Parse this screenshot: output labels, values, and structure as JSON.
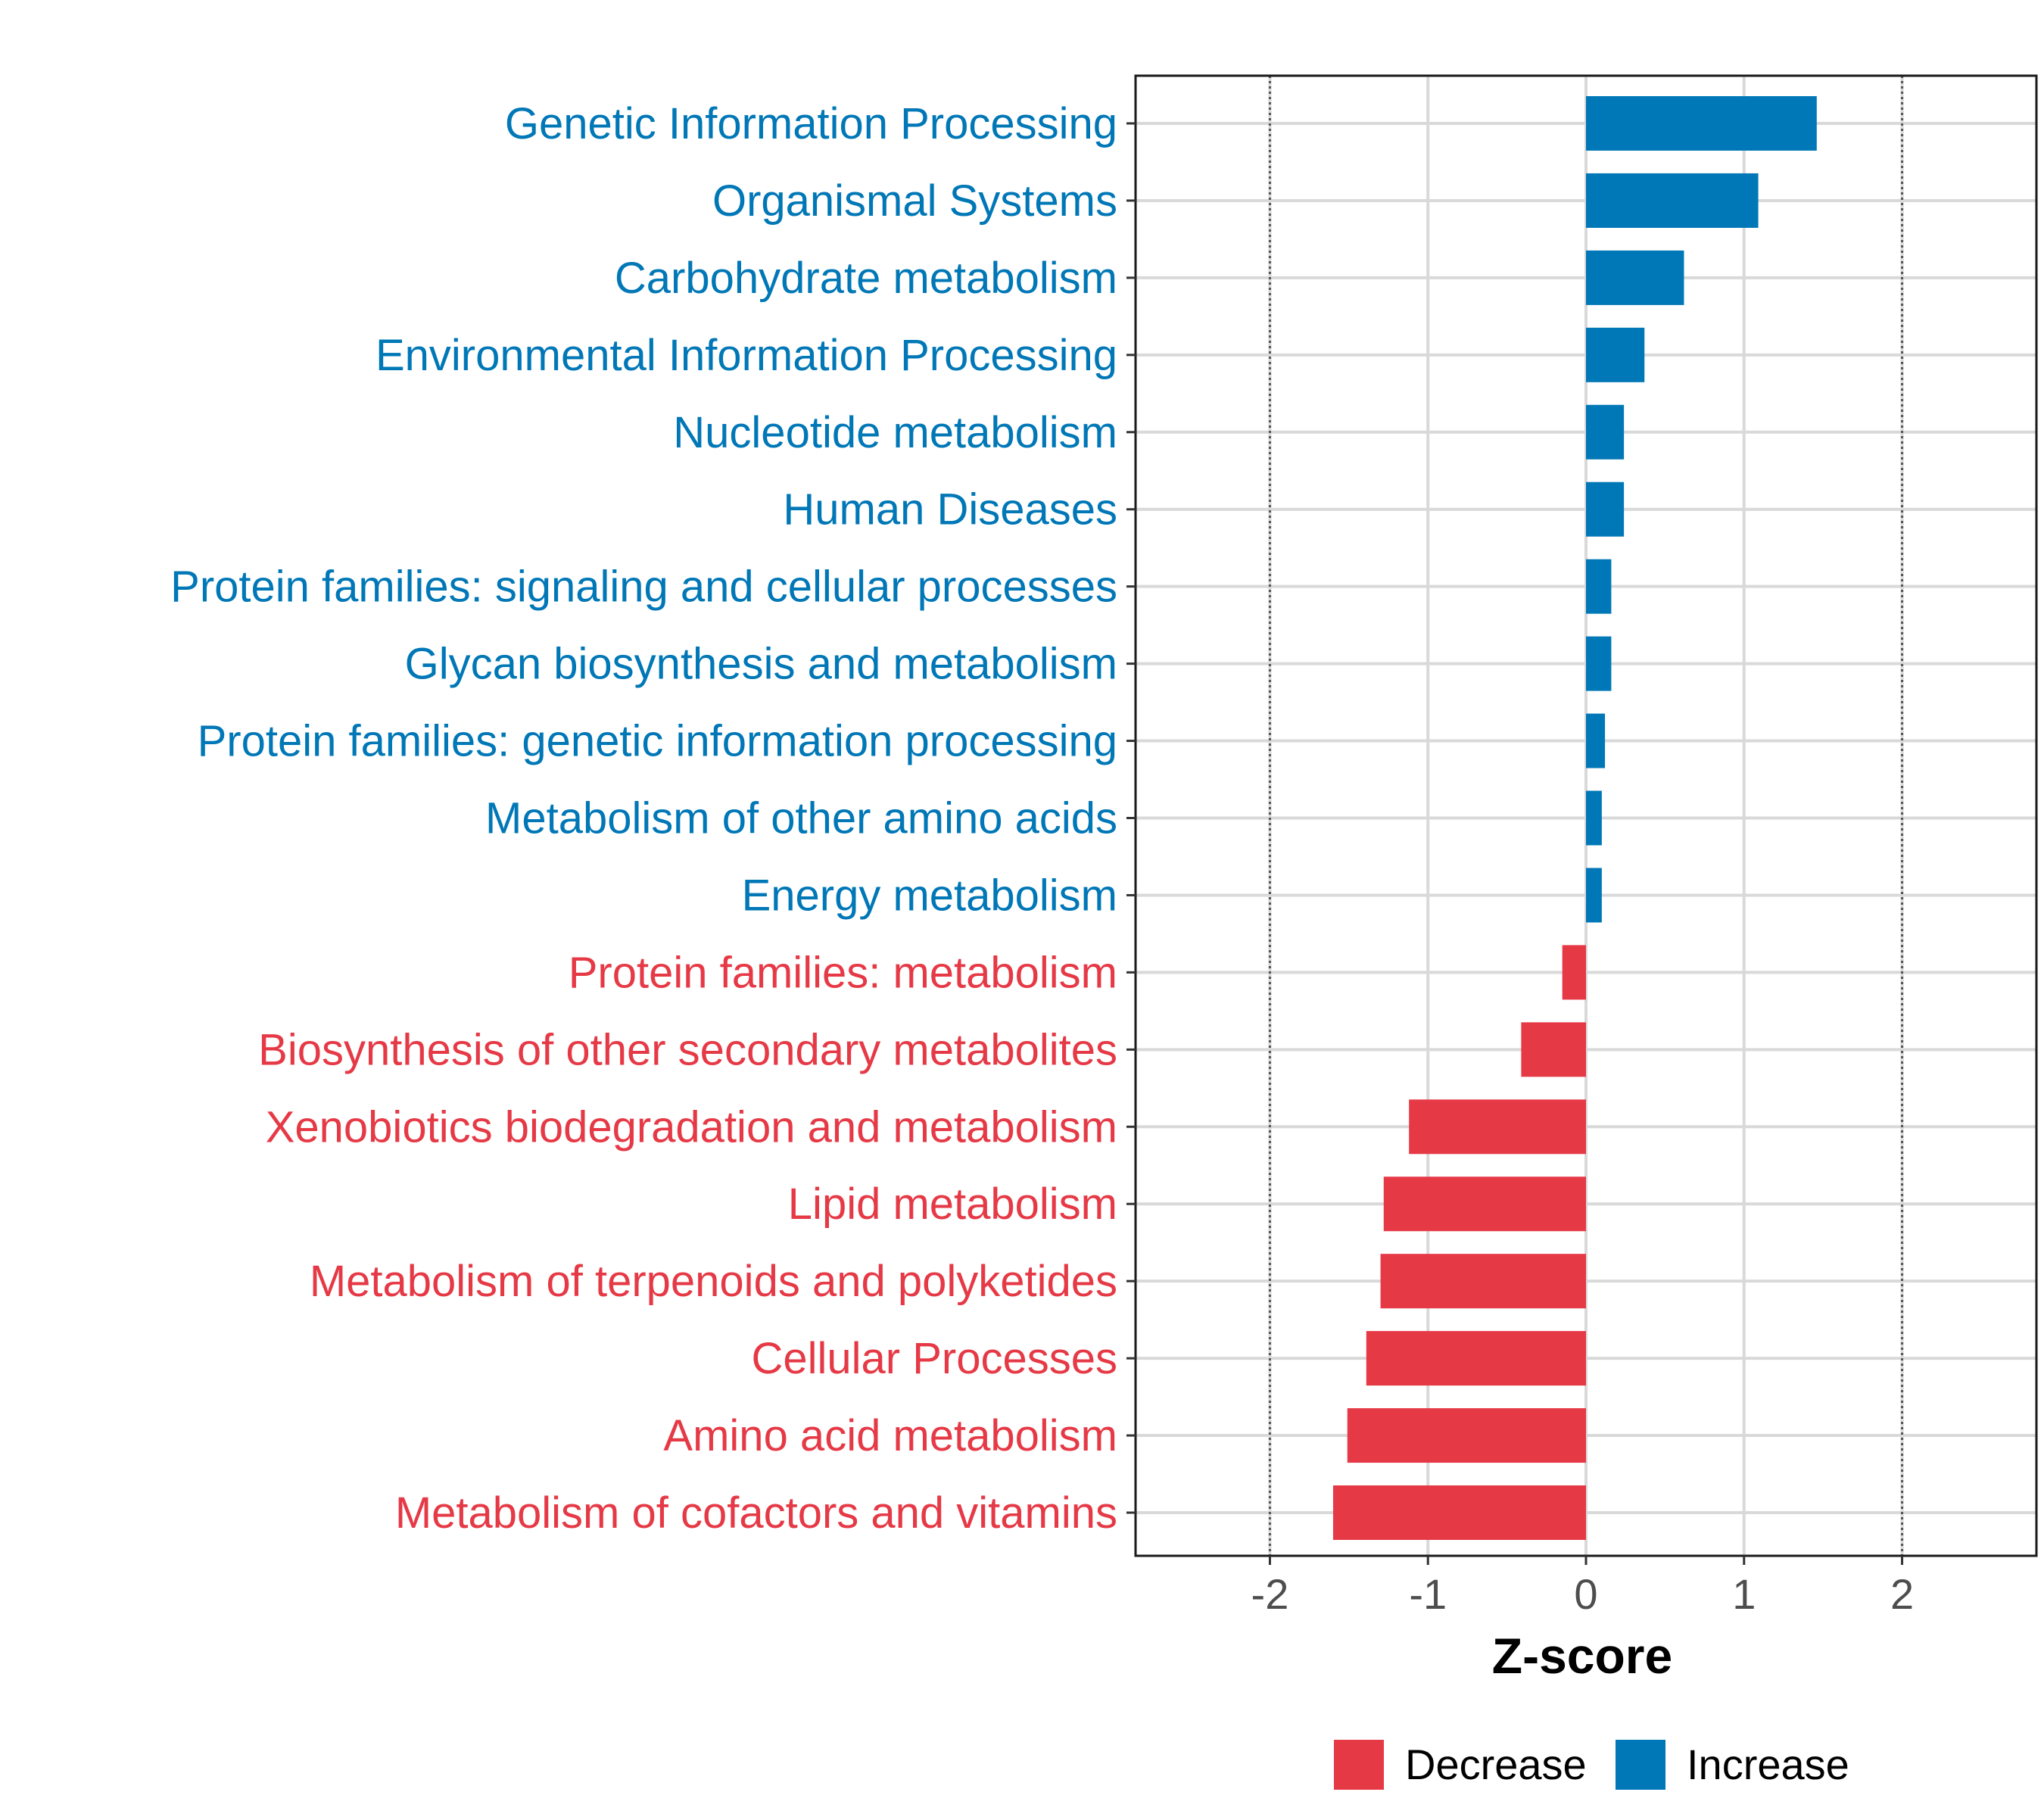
{
  "chart_data": {
    "type": "bar",
    "orientation": "horizontal",
    "xlabel": "Z-score",
    "ylabel": "",
    "xlim": [
      -2.85,
      2.85
    ],
    "x_ticks": [
      -2,
      -1,
      0,
      1,
      2
    ],
    "x_tick_labels": [
      "-2",
      "-1",
      "0",
      "1",
      "2"
    ],
    "reference_lines": [
      -2,
      2
    ],
    "grid": true,
    "legend_position": "bottom",
    "colors": {
      "Decrease": "#E63946",
      "Increase": "#0077B6"
    },
    "legend": [
      {
        "name": "Decrease"
      },
      {
        "name": "Increase"
      }
    ],
    "categories": [
      "Genetic Information Processing",
      "Organismal Systems",
      "Carbohydrate metabolism",
      "Environmental Information Processing",
      "Nucleotide metabolism",
      "Human Diseases",
      "Protein families: signaling and cellular processes",
      "Glycan biosynthesis and metabolism",
      "Protein families: genetic information processing",
      "Metabolism of other amino acids",
      "Energy metabolism",
      "Protein families: metabolism",
      "Biosynthesis of other secondary metabolites",
      "Xenobiotics biodegradation and metabolism",
      "Lipid metabolism",
      "Metabolism of terpenoids and polyketides",
      "Cellular Processes",
      "Amino acid metabolism",
      "Metabolism of cofactors and vitamins"
    ],
    "values": [
      1.46,
      1.09,
      0.62,
      0.37,
      0.24,
      0.24,
      0.16,
      0.16,
      0.12,
      0.1,
      0.1,
      -0.15,
      -0.41,
      -1.12,
      -1.28,
      -1.3,
      -1.39,
      -1.51,
      -1.6
    ],
    "groups": [
      "Increase",
      "Increase",
      "Increase",
      "Increase",
      "Increase",
      "Increase",
      "Increase",
      "Increase",
      "Increase",
      "Increase",
      "Increase",
      "Decrease",
      "Decrease",
      "Decrease",
      "Decrease",
      "Decrease",
      "Decrease",
      "Decrease",
      "Decrease"
    ]
  }
}
